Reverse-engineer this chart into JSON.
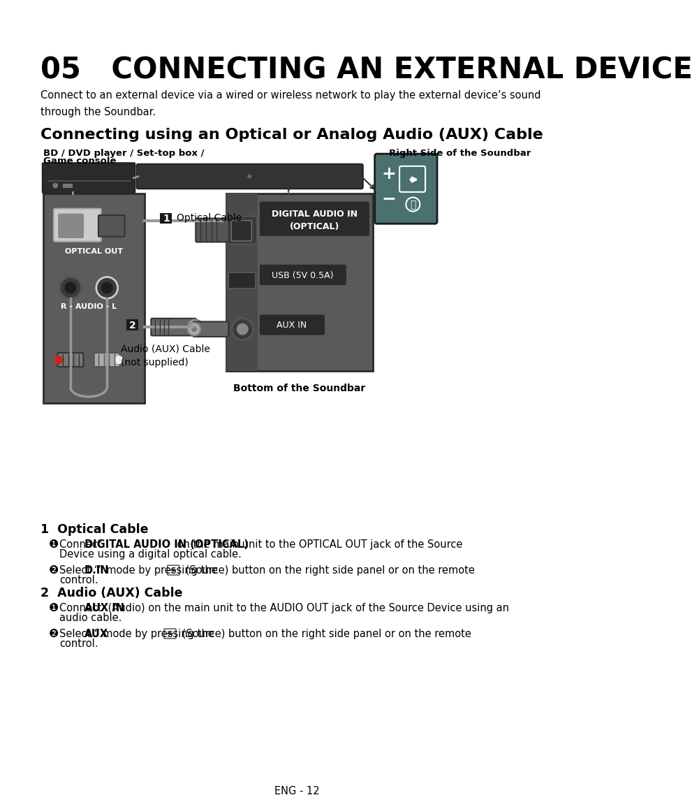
{
  "title": "05   CONNECTING AN EXTERNAL DEVICE",
  "subtitle": "Connect to an external device via a wired or wireless network to play the external device’s sound\nthrough the Soundbar.",
  "section_title": "Connecting using an Optical or Analog Audio (AUX) Cable",
  "label_bd": "BD / DVD player / Set-top box /",
  "label_game": "Game console",
  "label_right_side": "Right Side of the Soundbar",
  "label_optical_out": "OPTICAL OUT",
  "label_optical_cable": "Optical Cable",
  "label_audio_cable": "Audio (AUX) Cable\n(not supplied)",
  "label_r_audio_l": "R - AUDIO - L",
  "label_digital_audio": "DIGITAL AUDIO IN\n(OPTICAL)",
  "label_usb": "USB (5V 0.5A)",
  "label_aux_in": "AUX IN",
  "label_bottom": "Bottom of the Soundbar",
  "sec1_title": "1  Optical Cable",
  "sec2_title": "2  Audio (AUX) Cable",
  "footer": "ENG - 12",
  "bg_color": "#ffffff",
  "text_color": "#000000",
  "panel_color": "#5c5c5c",
  "panel_dark": "#3d3d3d",
  "panel_darker": "#2d2d2d",
  "soundbar_color": "#444444",
  "label_box_color": "#2a2a2a",
  "remote_color": "#4a7070",
  "cable_color": "#999999",
  "white": "#ffffff",
  "light_gray": "#bbbbbb"
}
